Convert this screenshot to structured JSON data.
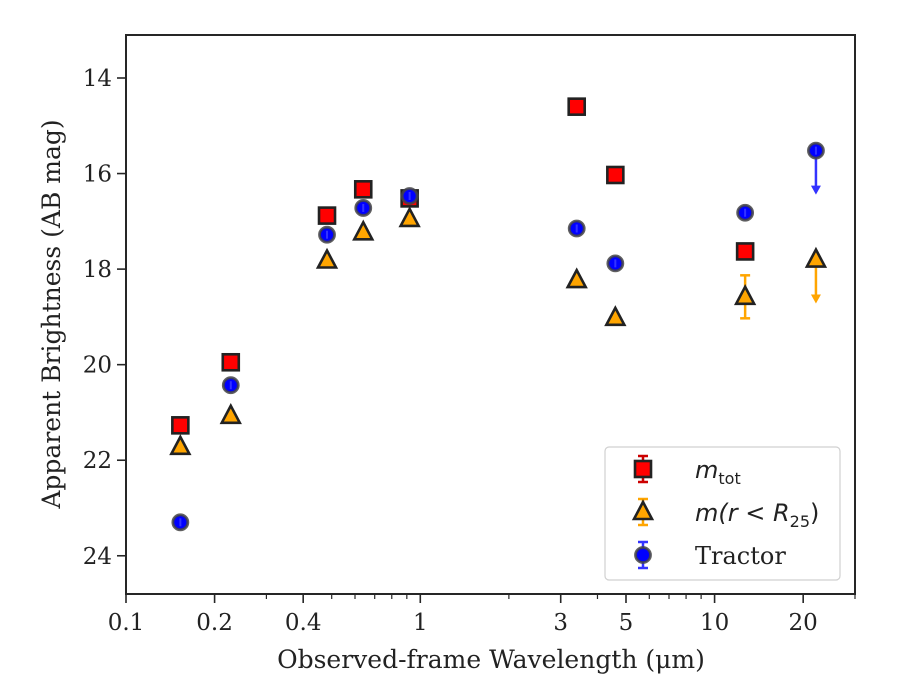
{
  "chart_data": {
    "type": "scatter",
    "xlabel": "Observed-frame Wavelength (μm)",
    "ylabel": "Apparent Brightness (AB mag)",
    "xscale": "log",
    "xlim": [
      0.1,
      30
    ],
    "ylim": [
      24.8,
      13.1
    ],
    "y_inverted": true,
    "x_ticks": [
      {
        "value": 0.1,
        "label": "0.1"
      },
      {
        "value": 0.2,
        "label": "0.2"
      },
      {
        "value": 0.4,
        "label": "0.4"
      },
      {
        "value": 1,
        "label": "1"
      },
      {
        "value": 3,
        "label": "3"
      },
      {
        "value": 5,
        "label": "5"
      },
      {
        "value": 10,
        "label": "10"
      },
      {
        "value": 20,
        "label": "20"
      }
    ],
    "y_ticks": [
      {
        "value": 14,
        "label": "14"
      },
      {
        "value": 16,
        "label": "16"
      },
      {
        "value": 18,
        "label": "18"
      },
      {
        "value": 20,
        "label": "20"
      },
      {
        "value": 22,
        "label": "22"
      },
      {
        "value": 24,
        "label": "24"
      }
    ],
    "grid": false,
    "legend_position": "lower-right",
    "series": [
      {
        "key": "mtot",
        "legend_base": "m",
        "legend_sub": "tot",
        "legend_rest": "",
        "marker": "square",
        "color": "#ff0000",
        "errcolor": "#cc0000",
        "points": [
          {
            "x": 0.153,
            "y": 21.27
          },
          {
            "x": 0.227,
            "y": 19.95
          },
          {
            "x": 0.482,
            "y": 16.88
          },
          {
            "x": 0.64,
            "y": 16.33
          },
          {
            "x": 0.92,
            "y": 16.52
          },
          {
            "x": 3.4,
            "y": 14.6
          },
          {
            "x": 4.6,
            "y": 16.03
          },
          {
            "x": 12.7,
            "y": 17.63
          }
        ]
      },
      {
        "key": "mr25",
        "legend_base": "m",
        "legend_sub": "25",
        "legend_rest": "(r < R",
        "legend_close": ")",
        "marker": "triangle",
        "color": "#ffa500",
        "errcolor": "#ffa500",
        "points": [
          {
            "x": 0.153,
            "y": 21.72
          },
          {
            "x": 0.227,
            "y": 21.07
          },
          {
            "x": 0.482,
            "y": 17.82
          },
          {
            "x": 0.64,
            "y": 17.23
          },
          {
            "x": 0.92,
            "y": 16.95
          },
          {
            "x": 3.4,
            "y": 18.23
          },
          {
            "x": 4.6,
            "y": 19.02
          },
          {
            "x": 12.7,
            "y": 18.58,
            "yerr": 0.45
          },
          {
            "x": 22.1,
            "y": 17.8,
            "upper_limit": true
          }
        ]
      },
      {
        "key": "tractor",
        "legend_base": "Tractor",
        "marker": "circle",
        "color": "#0000ff",
        "errcolor": "#3333ff",
        "points": [
          {
            "x": 0.153,
            "y": 23.3
          },
          {
            "x": 0.227,
            "y": 20.43
          },
          {
            "x": 0.482,
            "y": 17.28
          },
          {
            "x": 0.64,
            "y": 16.72
          },
          {
            "x": 0.92,
            "y": 16.47
          },
          {
            "x": 3.4,
            "y": 17.15
          },
          {
            "x": 4.6,
            "y": 17.88
          },
          {
            "x": 12.7,
            "y": 16.82
          },
          {
            "x": 22.1,
            "y": 15.52,
            "upper_limit": true
          }
        ]
      }
    ]
  }
}
